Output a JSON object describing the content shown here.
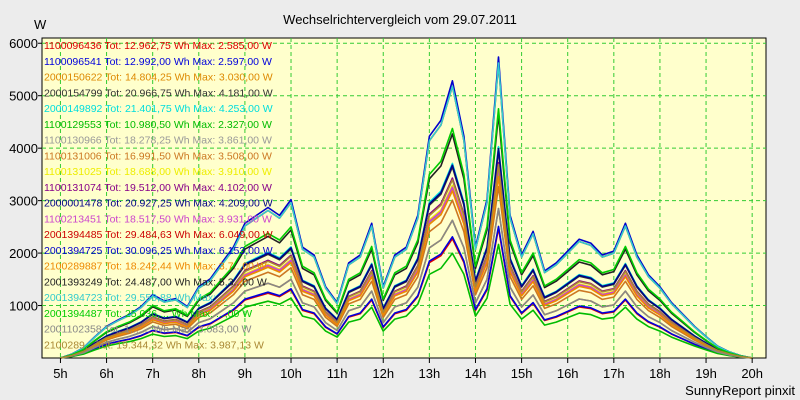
{
  "chart_data": {
    "type": "line",
    "title": "Wechselrichtervergleich vom 29.07.2011",
    "ylabel": "W",
    "xlabel": "",
    "credit": "SunnyReport pinxit",
    "ylim": [
      0,
      6100
    ],
    "xlim": [
      4.6,
      20.3
    ],
    "yticks": [
      1000,
      2000,
      3000,
      4000,
      5000,
      6000
    ],
    "yticklabels": [
      "1000",
      "2000",
      "3000",
      "4000",
      "5000",
      "6000"
    ],
    "xticks": [
      5,
      6,
      7,
      8,
      9,
      10,
      11,
      12,
      13,
      14,
      15,
      16,
      17,
      18,
      19,
      20
    ],
    "xticklabels": [
      "5h",
      "6h",
      "7h",
      "8h",
      "9h",
      "10h",
      "11h",
      "12h",
      "13h",
      "14h",
      "15h",
      "16h",
      "17h",
      "18h",
      "19h",
      "20h"
    ],
    "grid": true,
    "legend_position": "top-left",
    "colors": {
      "plot_background": "#ffffcc",
      "page_background": "#ececec",
      "grid": "#33cc33",
      "axis": "#000000"
    },
    "x": [
      5.0,
      5.25,
      5.5,
      5.75,
      6.0,
      6.25,
      6.5,
      6.75,
      7.0,
      7.25,
      7.5,
      7.75,
      8.0,
      8.25,
      8.5,
      8.75,
      9.0,
      9.25,
      9.5,
      9.75,
      10.0,
      10.25,
      10.5,
      10.75,
      11.0,
      11.25,
      11.5,
      11.75,
      12.0,
      12.25,
      12.5,
      12.75,
      13.0,
      13.25,
      13.5,
      13.75,
      14.0,
      14.25,
      14.5,
      14.75,
      15.0,
      15.25,
      15.5,
      15.75,
      16.0,
      16.25,
      16.5,
      16.75,
      17.0,
      17.25,
      17.5,
      17.75,
      18.0,
      18.25,
      18.5,
      18.75,
      19.0,
      19.25,
      19.5,
      19.75,
      20.0
    ],
    "base_profile": [
      0,
      50,
      130,
      270,
      400,
      480,
      550,
      650,
      800,
      720,
      750,
      650,
      900,
      1000,
      1200,
      1400,
      1700,
      1800,
      1900,
      1800,
      2000,
      1400,
      1300,
      900,
      700,
      1200,
      1300,
      1700,
      900,
      1300,
      1400,
      1800,
      2800,
      3000,
      3500,
      2800,
      1400,
      2000,
      3800,
      1800,
      1300,
      1600,
      1100,
      1200,
      1350,
      1500,
      1450,
      1300,
      1350,
      1700,
      1300,
      1050,
      900,
      700,
      550,
      400,
      270,
      150,
      80,
      30,
      0
    ],
    "series": [
      {
        "label": "1100096436 Tot: 12.962,75 Wh Max: 2.585,00 W",
        "color": "#dd0000",
        "scale": 0.65
      },
      {
        "label": "1100096541 Tot: 12.992,00 Wh Max: 2.597,00 W",
        "color": "#0000dd",
        "scale": 0.66
      },
      {
        "label": "2000150622 Tot: 14.804,25 Wh Max: 3.030,00 W",
        "color": "#dd8800",
        "scale": 0.75
      },
      {
        "label": "2000154799 Tot: 20.966,75 Wh Max: 4.181,00 W",
        "color": "#333333",
        "scale": 1.04
      },
      {
        "label": "2000149892 Tot: 21.401,75 Wh Max: 4.253,00 W",
        "color": "#00dddd",
        "scale": 1.06
      },
      {
        "label": "1100129553 Tot: 10.980,50 Wh Max: 2.327,00 W",
        "color": "#00bb00",
        "scale": 0.57
      },
      {
        "label": "1100130966 Tot: 18.278,25 Wh Max: 3.861,00 W",
        "color": "#999999",
        "scale": 0.92
      },
      {
        "label": "1100131006 Tot: 16.991,50 Wh Max: 3.508,00 W",
        "color": "#cc7722",
        "scale": 0.86
      },
      {
        "label": "1100131025 Tot: 18.688,00 Wh Max: 3.910,00 W",
        "color": "#eeee00",
        "scale": 0.94
      },
      {
        "label": "1100131074 Tot: 19.512,00 Wh Max: 4.102,00 W",
        "color": "#880088",
        "scale": 0.98
      },
      {
        "label": "2000001478 Tot: 20.927,25 Wh Max: 4.209,00 W",
        "color": "#000088",
        "scale": 1.05
      },
      {
        "label": "1100213451 Tot: 18.517,50 Wh Max: 3.931,00 W",
        "color": "#cc44cc",
        "scale": 0.93
      },
      {
        "label": "2001394485 Tot: 29.484,63 Wh Max: 6.049,00 W",
        "color": "#cc0000",
        "scale": 1.48
      },
      {
        "label": "2001394725 Tot: 30.096,25 Wh Max: 6.153,00 W",
        "color": "#0000cc",
        "scale": 1.51
      },
      {
        "label": "2100289887 Tot: 18.242,44 Wh Max: 3.7..,00 W",
        "color": "#ee8800",
        "scale": 0.91
      },
      {
        "label": "2001393249 Tot: 24.487,00 Wh Max: 5.3..,00 W",
        "color": "#222222",
        "scale": 1.22
      },
      {
        "label": "2001394723 Tot: 29.550,88 Wh Max: ...",
        "color": "#33cccc",
        "scale": 1.48
      },
      {
        "label": "2001394487 Tot: 25.036,... Wh Max: ...,00 W",
        "color": "#00cc00",
        "scale": 1.25
      },
      {
        "label": "2001102358 Tot: 1...,... Wh Max: 3.083,00 W",
        "color": "#888888",
        "scale": 0.75
      },
      {
        "label": "2100289... Tot: 19.344,32 Wh Max: 3.987,13 W",
        "color": "#aa8833",
        "scale": 0.97
      }
    ]
  }
}
